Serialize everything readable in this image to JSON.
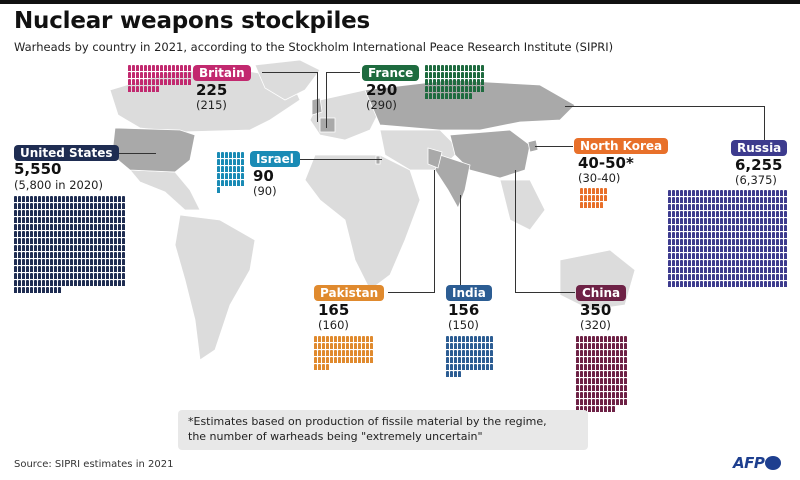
{
  "header": {
    "title": "Nuclear weapons stockpiles",
    "subtitle": "Warheads by country in 2021, according to the Stockholm International Peace Research Institute (SIPRI)"
  },
  "countries": [
    {
      "name": "United States",
      "value": "5,550",
      "previous": "(5,800 in 2020)",
      "color": "#1f2d52"
    },
    {
      "name": "Britain",
      "value": "225",
      "previous": "(215)",
      "color": "#c2296f"
    },
    {
      "name": "France",
      "value": "290",
      "previous": "(290)",
      "color": "#1e6b3f"
    },
    {
      "name": "Israel",
      "value": "90",
      "previous": "(90)",
      "color": "#1a8bb5"
    },
    {
      "name": "North Korea",
      "value": "40-50*",
      "previous": "(30-40)",
      "color": "#e8702a"
    },
    {
      "name": "Russia",
      "value": "6,255",
      "previous": "(6,375)",
      "color": "#3d3b8e"
    },
    {
      "name": "Pakistan",
      "value": "165",
      "previous": "(160)",
      "color": "#e08a2e"
    },
    {
      "name": "India",
      "value": "156",
      "previous": "(150)",
      "color": "#2c5d93"
    },
    {
      "name": "China",
      "value": "350",
      "previous": "(320)",
      "color": "#6e2246"
    }
  ],
  "note": {
    "line1": "*Estimates based on production of fissile material by the regime,",
    "line2": "the number of warheads being \"extremely uncertain\""
  },
  "footer": {
    "source": "Source: SIPRI estimates in 2021",
    "logo": "AFP"
  },
  "colors": {
    "map_highlight": "#a9a9a9",
    "map_base": "#dcdcdc",
    "note_bg": "#e8e8e8"
  },
  "chart_data": {
    "type": "table",
    "title": "Nuclear weapons stockpiles",
    "subtitle": "Warheads by country in 2021, according to the Stockholm International Peace Research Institute (SIPRI)",
    "categories": [
      "United States",
      "Russia",
      "China",
      "France",
      "Britain",
      "Pakistan",
      "India",
      "Israel",
      "North Korea"
    ],
    "series": [
      {
        "name": "2021",
        "values": [
          5550,
          6255,
          350,
          290,
          225,
          165,
          156,
          90,
          "40-50"
        ]
      },
      {
        "name": "2020",
        "values": [
          5800,
          6375,
          320,
          290,
          215,
          160,
          150,
          90,
          "30-40"
        ]
      }
    ],
    "annotations": [
      "*Estimates based on production of fissile material by the regime, the number of warheads being \"extremely uncertain\""
    ],
    "source": "Source: SIPRI estimates in 2021"
  }
}
